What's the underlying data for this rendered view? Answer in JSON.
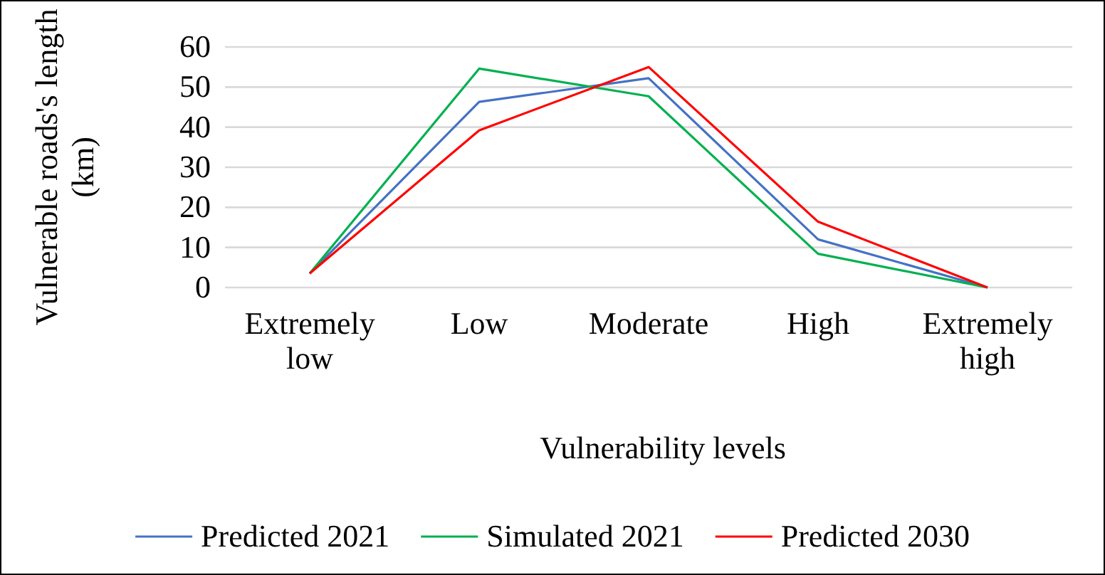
{
  "chart_data": {
    "type": "line",
    "xlabel": "Vulnerability levels",
    "ylabel": "Vulnerable roads's length (km)",
    "categories": [
      "Extremely low",
      "Low",
      "Moderate",
      "High",
      "Extremely high"
    ],
    "series": [
      {
        "name": "Predicted 2021",
        "color": "#4472c4",
        "values": [
          3.5,
          46.3,
          52.2,
          12.0,
          0
        ]
      },
      {
        "name": "Simulated 2021",
        "color": "#00b050",
        "values": [
          3.5,
          54.6,
          47.7,
          8.4,
          0
        ]
      },
      {
        "name": "Predicted 2030",
        "color": "#ff0000",
        "values": [
          3.5,
          39.2,
          55.0,
          16.4,
          0
        ]
      }
    ],
    "ylim": [
      0,
      60
    ],
    "yticks": [
      0,
      10,
      20,
      30,
      40,
      50,
      60
    ],
    "grid": "y",
    "legend": "bottom",
    "marker": "none",
    "line_style": "solid"
  }
}
